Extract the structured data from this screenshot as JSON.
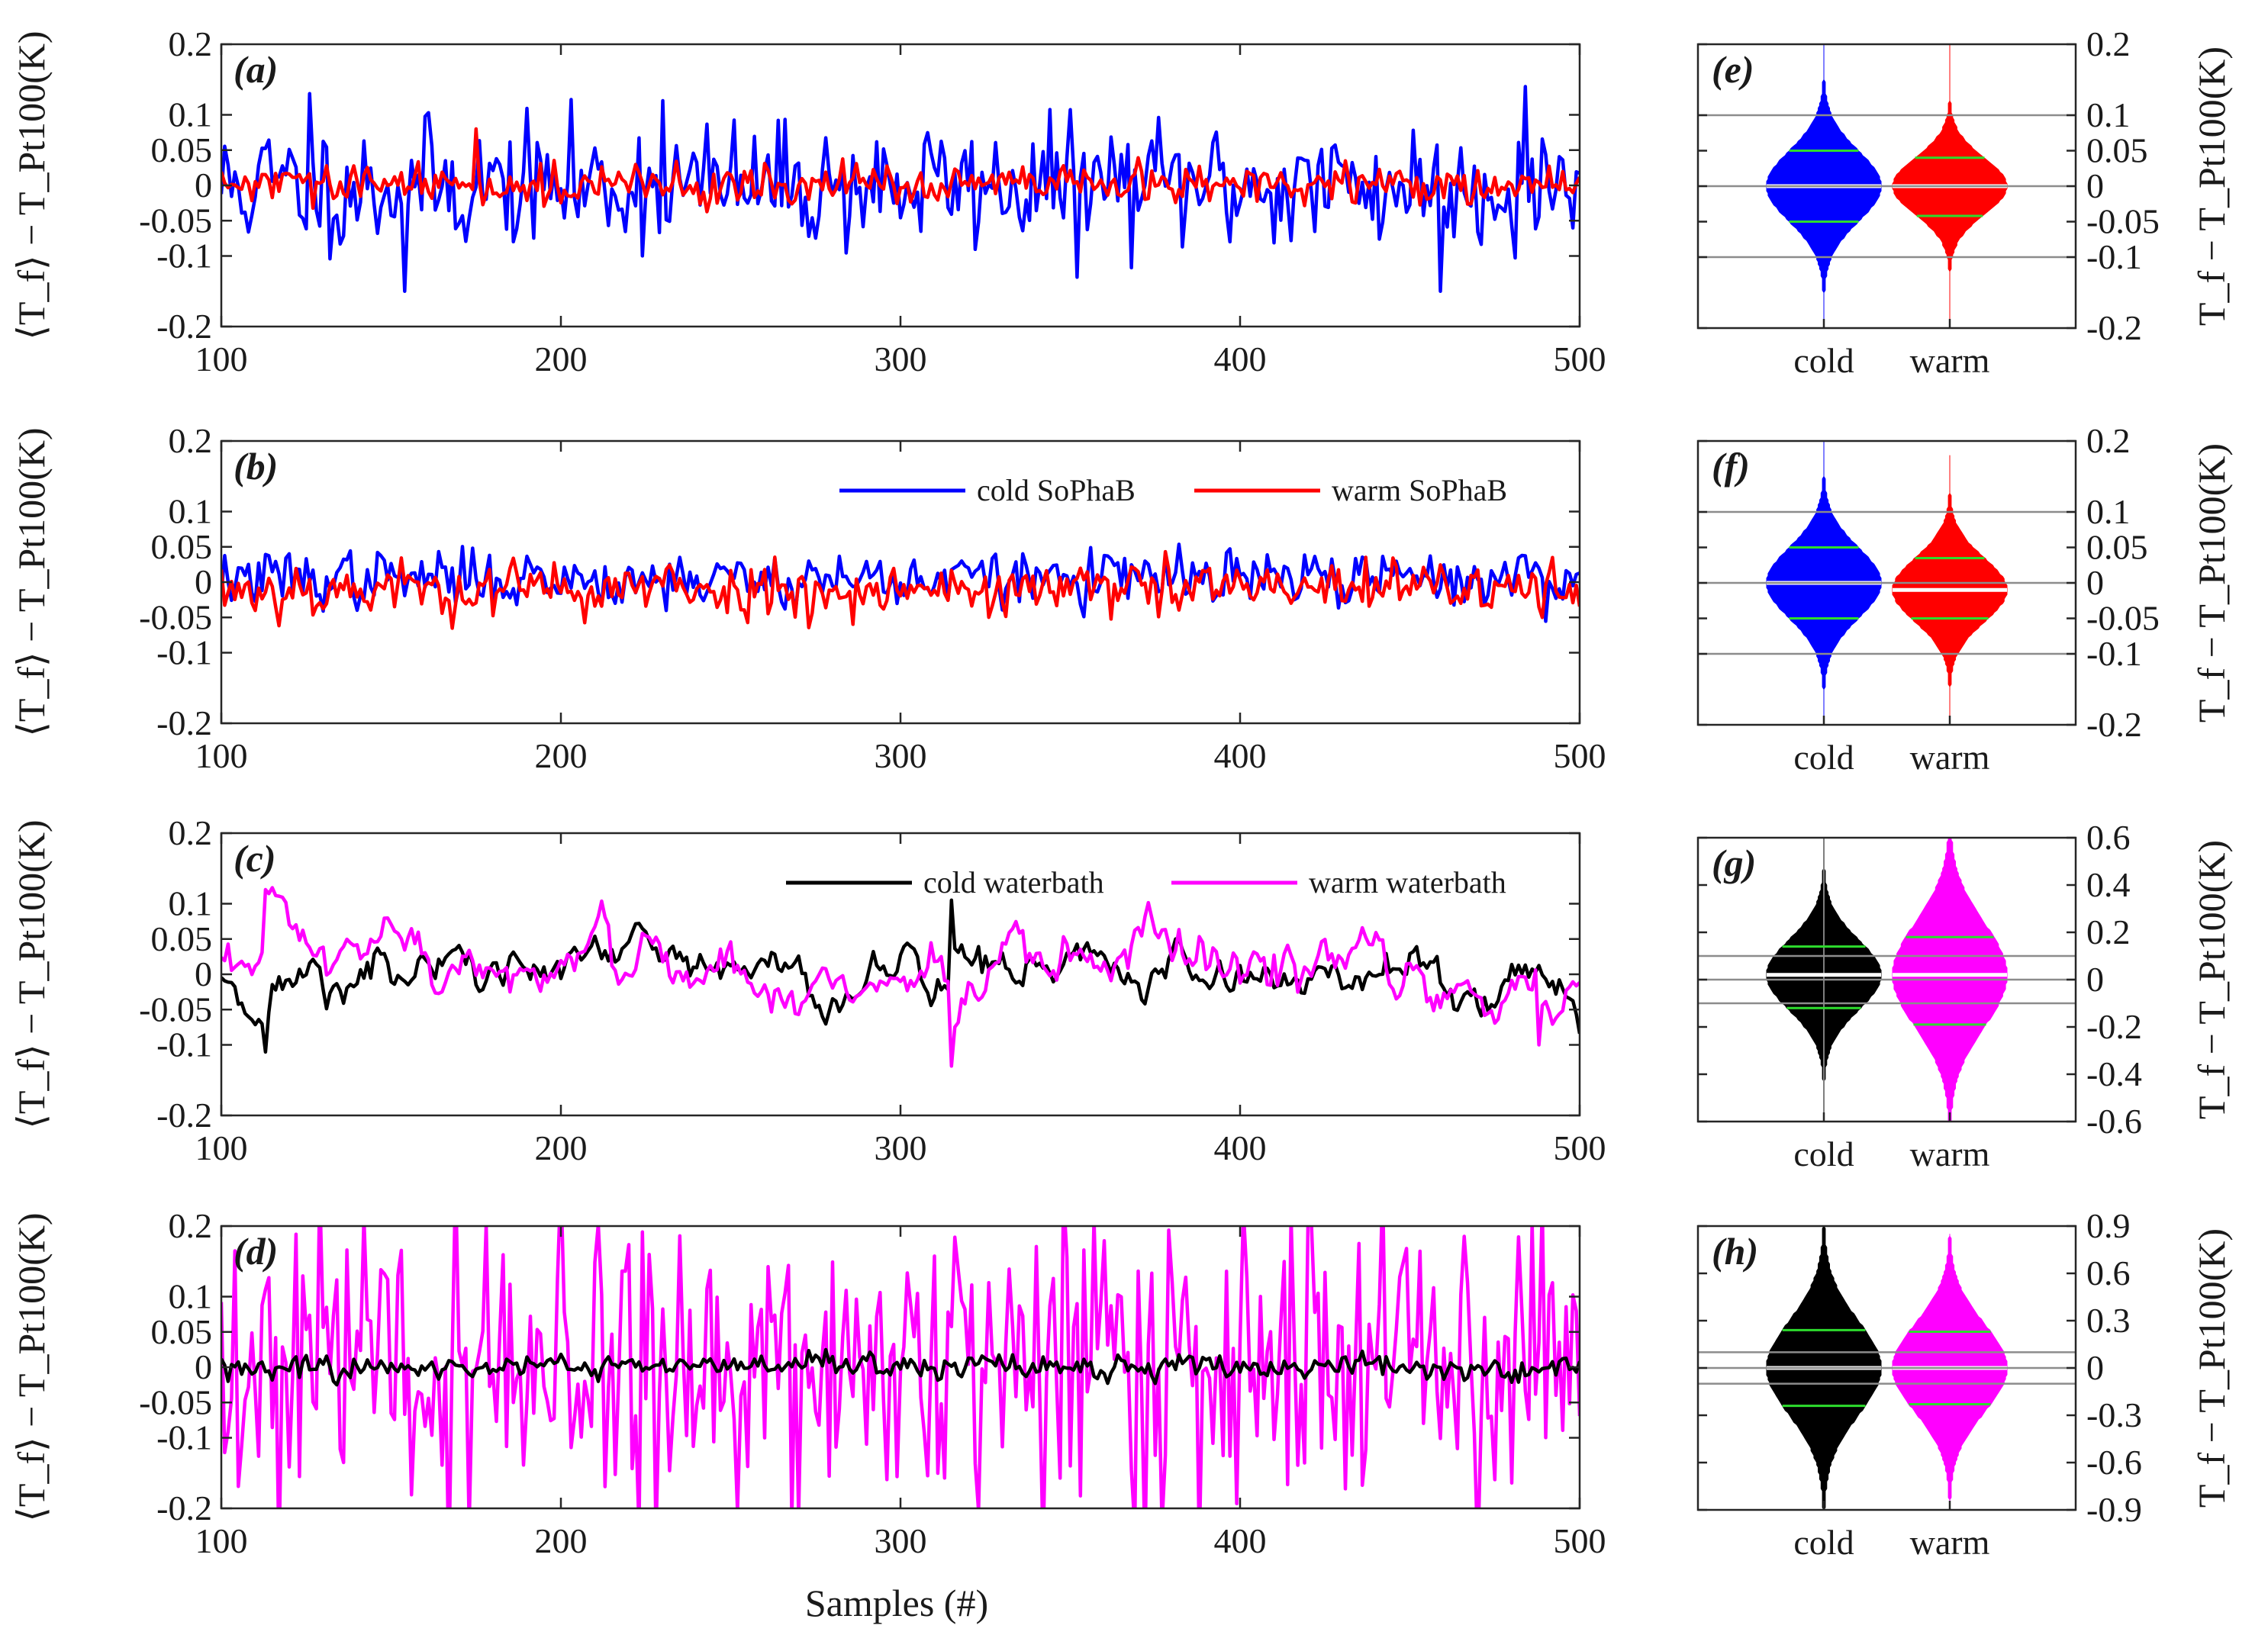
{
  "figure": {
    "x_label": "Samples (#)",
    "ts_ylabel": "⟨T_f⟩ − T_Pt100(K)",
    "violin_ylabel": "T_f − T_Pt100(K)"
  },
  "chart_data": [
    {
      "id": "a",
      "type": "line",
      "panel_label": "(a)",
      "xlim": [
        100,
        500
      ],
      "ylim": [
        -0.2,
        0.2
      ],
      "xticks": [
        "100",
        "200",
        "300",
        "400",
        "500"
      ],
      "yticks": [
        {
          "v": 0.2,
          "t": "0.2"
        },
        {
          "v": 0.1,
          "t": "0.1"
        },
        {
          "v": 0.05,
          "t": "0.05"
        },
        {
          "v": 0,
          "t": "0"
        },
        {
          "v": -0.05,
          "t": "-0.05"
        },
        {
          "v": -0.1,
          "t": "-0.1"
        },
        {
          "v": -0.2,
          "t": "-0.2"
        }
      ],
      "series": [
        {
          "name": "cold SoPhaB",
          "color": "#0000ff",
          "std": 0.045,
          "seed": 11,
          "smooth": 0.15,
          "spikes": [
            {
              "x": 126,
              "y": 0.13
            },
            {
              "x": 154,
              "y": -0.15
            },
            {
              "x": 230,
              "y": 0.12
            },
            {
              "x": 352,
              "y": -0.13
            },
            {
              "x": 459,
              "y": -0.15
            },
            {
              "x": 484,
              "y": 0.14
            }
          ]
        },
        {
          "name": "warm SoPhaB",
          "color": "#ff0000",
          "std": 0.014,
          "seed": 29,
          "smooth": 0.2,
          "spikes": [
            {
              "x": 175,
              "y": 0.08
            }
          ]
        }
      ]
    },
    {
      "id": "b",
      "type": "line",
      "panel_label": "(b)",
      "xlim": [
        100,
        500
      ],
      "ylim": [
        -0.2,
        0.2
      ],
      "xticks": [
        "100",
        "200",
        "300",
        "400",
        "500"
      ],
      "yticks": [
        {
          "v": 0.2,
          "t": "0.2"
        },
        {
          "v": 0.1,
          "t": "0.1"
        },
        {
          "v": 0.05,
          "t": "0.05"
        },
        {
          "v": 0,
          "t": "0"
        },
        {
          "v": -0.05,
          "t": "-0.05"
        },
        {
          "v": -0.1,
          "t": "-0.1"
        },
        {
          "v": -0.2,
          "t": "-0.2"
        }
      ],
      "legend": [
        {
          "name": "cold SoPhaB",
          "color": "#0000ff"
        },
        {
          "name": "warm SoPhaB",
          "color": "#ff0000"
        }
      ],
      "series": [
        {
          "name": "cold SoPhaB",
          "color": "#0000ff",
          "std": 0.02,
          "seed": 37,
          "smooth": 0.2,
          "offset": 0.005,
          "spikes": []
        },
        {
          "name": "warm SoPhaB",
          "color": "#ff0000",
          "std": 0.02,
          "seed": 53,
          "smooth": 0.2,
          "offset": -0.01,
          "spikes": []
        }
      ]
    },
    {
      "id": "c",
      "type": "line",
      "panel_label": "(c)",
      "xlim": [
        100,
        500
      ],
      "ylim": [
        -0.2,
        0.2
      ],
      "xticks": [
        "100",
        "200",
        "300",
        "400",
        "500"
      ],
      "yticks": [
        {
          "v": 0.2,
          "t": "0.2"
        },
        {
          "v": 0.1,
          "t": "0.1"
        },
        {
          "v": 0.05,
          "t": "0.05"
        },
        {
          "v": 0,
          "t": "0"
        },
        {
          "v": -0.05,
          "t": "-0.05"
        },
        {
          "v": -0.1,
          "t": "-0.1"
        },
        {
          "v": -0.2,
          "t": "-0.2"
        }
      ],
      "legend": [
        {
          "name": "cold waterbath",
          "color": "#000000"
        },
        {
          "name": "warm waterbath",
          "color": "#ff00ff"
        }
      ],
      "series": [
        {
          "name": "cold waterbath",
          "color": "#000000",
          "std": 0.03,
          "seed": 71,
          "smooth": 0.88,
          "spikes": [
            {
              "x": 113,
              "y": -0.11
            },
            {
              "x": 315,
              "y": 0.105
            }
          ]
        },
        {
          "name": "warm waterbath",
          "color": "#ff00ff",
          "std": 0.035,
          "seed": 97,
          "smooth": 0.88,
          "spikes": [
            {
              "x": 113,
              "y": 0.12
            },
            {
              "x": 315,
              "y": -0.13
            },
            {
              "x": 488,
              "y": -0.1
            }
          ]
        }
      ]
    },
    {
      "id": "d",
      "type": "line",
      "panel_label": "(d)",
      "xlim": [
        100,
        500
      ],
      "ylim": [
        -0.2,
        0.2
      ],
      "xticks": [
        "100",
        "200",
        "300",
        "400",
        "500"
      ],
      "yticks": [
        {
          "v": 0.2,
          "t": "0.2"
        },
        {
          "v": 0.1,
          "t": "0.1"
        },
        {
          "v": 0.05,
          "t": "0.05"
        },
        {
          "v": 0,
          "t": "0"
        },
        {
          "v": -0.05,
          "t": "-0.05"
        },
        {
          "v": -0.1,
          "t": "-0.1"
        },
        {
          "v": -0.2,
          "t": "-0.2"
        }
      ],
      "series": [
        {
          "name": "warm waterbath",
          "color": "#ff00ff",
          "std": 0.11,
          "seed": 131,
          "smooth": 0.05,
          "spikes": []
        },
        {
          "name": "cold waterbath",
          "color": "#000000",
          "std": 0.008,
          "seed": 151,
          "smooth": 0.3,
          "spikes": []
        }
      ]
    },
    {
      "id": "e",
      "type": "violin",
      "panel_label": "(e)",
      "ylim": [
        -0.2,
        0.2
      ],
      "yticks": [
        {
          "v": 0.2,
          "t": "0.2"
        },
        {
          "v": 0.1,
          "t": "0.1"
        },
        {
          "v": 0.05,
          "t": "0.05"
        },
        {
          "v": 0,
          "t": "0"
        },
        {
          "v": -0.05,
          "t": "-0.05"
        },
        {
          "v": -0.1,
          "t": "-0.1"
        },
        {
          "v": -0.2,
          "t": "-0.2"
        }
      ],
      "reflines": [
        0.1,
        0,
        -0.1
      ],
      "categories": [
        "cold",
        "warm"
      ],
      "violins": [
        {
          "name": "cold",
          "color": "#0000ff",
          "sigma": 0.05,
          "ymin": -0.2,
          "ymax": 0.2,
          "median": 0,
          "q_high": 0.05,
          "q_low": -0.05
        },
        {
          "name": "warm",
          "color": "#ff0000",
          "sigma": 0.04,
          "ymin": -0.2,
          "ymax": 0.2,
          "median": 0,
          "q_high": 0.04,
          "q_low": -0.042
        }
      ]
    },
    {
      "id": "f",
      "type": "violin",
      "panel_label": "(f)",
      "ylim": [
        -0.2,
        0.2
      ],
      "yticks": [
        {
          "v": 0.2,
          "t": "0.2"
        },
        {
          "v": 0.1,
          "t": "0.1"
        },
        {
          "v": 0.05,
          "t": "0.05"
        },
        {
          "v": 0,
          "t": "0"
        },
        {
          "v": -0.05,
          "t": "-0.05"
        },
        {
          "v": -0.1,
          "t": "-0.1"
        },
        {
          "v": -0.2,
          "t": "-0.2"
        }
      ],
      "reflines": [
        0.1,
        0,
        -0.1
      ],
      "categories": [
        "cold",
        "warm"
      ],
      "violins": [
        {
          "name": "cold",
          "color": "#0000ff",
          "sigma": 0.05,
          "ymin": -0.2,
          "ymax": 0.2,
          "median": 0,
          "q_high": 0.05,
          "q_low": -0.05
        },
        {
          "name": "warm",
          "color": "#ff0000",
          "sigma": 0.045,
          "ymin": -0.2,
          "ymax": 0.18,
          "median": -0.01,
          "q_high": 0.035,
          "q_low": -0.05
        }
      ]
    },
    {
      "id": "g",
      "type": "violin",
      "panel_label": "(g)",
      "ylim": [
        -0.6,
        0.6
      ],
      "yticks": [
        {
          "v": 0.6,
          "t": "0.6"
        },
        {
          "v": 0.4,
          "t": "0.4"
        },
        {
          "v": 0.2,
          "t": "0.2"
        },
        {
          "v": 0,
          "t": "0"
        },
        {
          "v": -0.2,
          "t": "-0.2"
        },
        {
          "v": -0.4,
          "t": "-0.4"
        },
        {
          "v": -0.6,
          "t": "-0.6"
        }
      ],
      "reflines": [
        0.1,
        0,
        -0.1
      ],
      "categories": [
        "cold",
        "warm"
      ],
      "violins": [
        {
          "name": "cold",
          "color": "#000000",
          "sigma": 0.15,
          "ymin": -0.6,
          "ymax": 0.6,
          "median": 0.02,
          "q_high": 0.14,
          "q_low": -0.12,
          "thin_tails": true
        },
        {
          "name": "warm",
          "color": "#ff00ff",
          "sigma": 0.22,
          "ymin": -0.6,
          "ymax": 0.6,
          "median": 0.02,
          "q_high": 0.18,
          "q_low": -0.19
        }
      ]
    },
    {
      "id": "h",
      "type": "violin",
      "panel_label": "(h)",
      "ylim": [
        -0.9,
        0.9
      ],
      "yticks": [
        {
          "v": 0.9,
          "t": "0.9"
        },
        {
          "v": 0.6,
          "t": "0.6"
        },
        {
          "v": 0.3,
          "t": "0.3"
        },
        {
          "v": 0,
          "t": "0"
        },
        {
          "v": -0.3,
          "t": "-0.3"
        },
        {
          "v": -0.6,
          "t": "-0.6"
        },
        {
          "v": -0.9,
          "t": "-0.9"
        }
      ],
      "reflines": [
        0.1,
        0,
        -0.1
      ],
      "categories": [
        "cold",
        "warm"
      ],
      "violins": [
        {
          "name": "cold",
          "color": "#000000",
          "sigma": 0.3,
          "ymin": -0.9,
          "ymax": 0.9,
          "median": 0,
          "q_high": 0.24,
          "q_low": -0.24
        },
        {
          "name": "warm",
          "color": "#ff00ff",
          "sigma": 0.28,
          "ymin": -0.85,
          "ymax": 0.85,
          "median": 0,
          "q_high": 0.23,
          "q_low": -0.23
        }
      ]
    }
  ]
}
